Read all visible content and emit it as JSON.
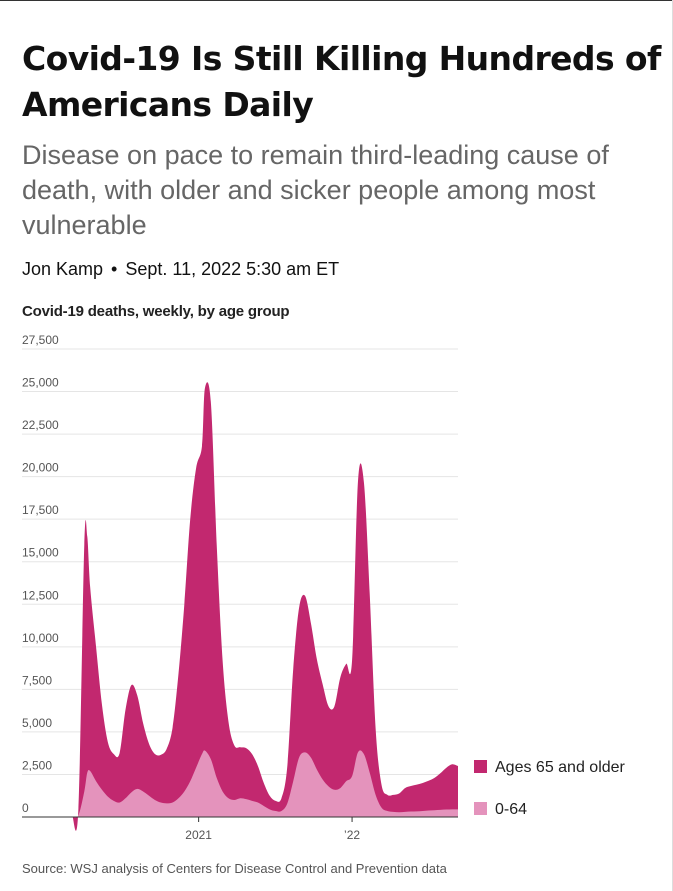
{
  "article": {
    "headline": "Covid-19 Is Still Killing Hundreds of Americans Daily",
    "dek": "Disease on pace to remain third-leading cause of death, with older and sicker people among most vulnerable",
    "author": "Jon Kamp",
    "separator": "•",
    "date": "Sept. 11, 2022 5:30 am ET"
  },
  "colors": {
    "older": "#C2286F",
    "younger": "#E493BC",
    "grid": "#e5e5e5",
    "axis": "#333333"
  },
  "chart_data": {
    "type": "area",
    "stacked": true,
    "title": "Covid-19 deaths, weekly, by age group",
    "xlabel": "",
    "ylabel": "",
    "ylim": [
      0,
      27500
    ],
    "yticks": [
      0,
      2500,
      5000,
      7500,
      10000,
      12500,
      15000,
      17500,
      20000,
      22500,
      25000,
      27500
    ],
    "ytick_labels": [
      "0",
      "2,500",
      "5,000",
      "7,500",
      "10,000",
      "12,500",
      "15,000",
      "17,500",
      "20,000",
      "22,500",
      "25,000",
      "27,500"
    ],
    "xticks": [
      {
        "label": "2021",
        "x": "2021-01-01"
      },
      {
        "label": "’22",
        "x": "2022-01-01"
      }
    ],
    "x_range": [
      "2020-03-01",
      "2022-09-10"
    ],
    "legend_position": "right",
    "grid": true,
    "x": [
      "2020-03-07",
      "2020-03-21",
      "2020-04-04",
      "2020-04-11",
      "2020-04-18",
      "2020-05-02",
      "2020-05-16",
      "2020-05-30",
      "2020-06-13",
      "2020-06-27",
      "2020-07-11",
      "2020-07-25",
      "2020-08-08",
      "2020-08-22",
      "2020-09-05",
      "2020-09-19",
      "2020-10-03",
      "2020-10-17",
      "2020-10-31",
      "2020-11-14",
      "2020-11-28",
      "2020-12-12",
      "2020-12-26",
      "2021-01-09",
      "2021-01-16",
      "2021-01-30",
      "2021-02-13",
      "2021-02-27",
      "2021-03-13",
      "2021-03-27",
      "2021-04-10",
      "2021-04-24",
      "2021-05-08",
      "2021-05-22",
      "2021-06-05",
      "2021-06-19",
      "2021-07-03",
      "2021-07-17",
      "2021-07-31",
      "2021-08-14",
      "2021-08-28",
      "2021-09-11",
      "2021-09-25",
      "2021-10-09",
      "2021-10-23",
      "2021-11-06",
      "2021-11-20",
      "2021-12-04",
      "2021-12-18",
      "2022-01-01",
      "2022-01-15",
      "2022-01-29",
      "2022-02-12",
      "2022-02-26",
      "2022-03-12",
      "2022-03-26",
      "2022-04-09",
      "2022-04-23",
      "2022-05-07",
      "2022-05-21",
      "2022-06-04",
      "2022-06-18",
      "2022-07-02",
      "2022-07-16",
      "2022-07-30",
      "2022-08-13",
      "2022-08-27",
      "2022-09-10"
    ],
    "series": [
      {
        "name": "0-64",
        "values": [
          0,
          100,
          1500,
          2600,
          2700,
          2100,
          1600,
          1200,
          950,
          850,
          1100,
          1450,
          1650,
          1500,
          1250,
          1000,
          850,
          800,
          850,
          1100,
          1500,
          2100,
          2900,
          3700,
          3900,
          3400,
          2300,
          1500,
          1100,
          1000,
          1100,
          1050,
          950,
          850,
          650,
          450,
          350,
          350,
          800,
          2100,
          3500,
          3800,
          3500,
          2800,
          2200,
          1800,
          1600,
          1700,
          2100,
          2400,
          3800,
          3700,
          2600,
          1300,
          550,
          350,
          300,
          280,
          300,
          320,
          330,
          350,
          380,
          400,
          420,
          440,
          450,
          450
        ]
      },
      {
        "name": "Ages 65 and older",
        "values": [
          0,
          400,
          14500,
          13900,
          10800,
          7900,
          5000,
          3200,
          2750,
          2900,
          5200,
          6300,
          5500,
          4000,
          3050,
          2700,
          2800,
          3200,
          4400,
          7300,
          11000,
          15400,
          17600,
          18100,
          21300,
          21000,
          13700,
          7700,
          4500,
          3200,
          3000,
          3000,
          2750,
          2150,
          1350,
          800,
          600,
          750,
          2200,
          6600,
          8800,
          9200,
          7900,
          6500,
          5600,
          4700,
          4900,
          6500,
          6900,
          6800,
          15900,
          16000,
          10500,
          3900,
          1350,
          950,
          1000,
          1100,
          1400,
          1500,
          1570,
          1650,
          1750,
          1900,
          2150,
          2450,
          2650,
          2550
        ]
      }
    ],
    "legend": [
      {
        "name": "Ages 65 and older",
        "label": "Ages 65 and older"
      },
      {
        "name": "0-64",
        "label": "0-64"
      }
    ],
    "source": "Source: WSJ analysis of Centers for Disease Control and Prevention data"
  }
}
